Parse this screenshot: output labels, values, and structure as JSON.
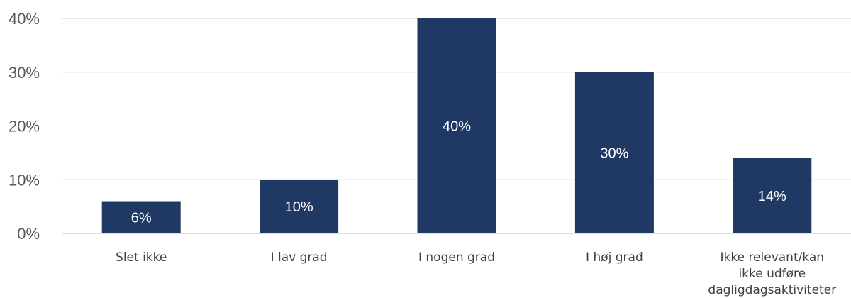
{
  "chart_data": {
    "type": "bar",
    "categories": [
      [
        "Slet ikke"
      ],
      [
        "I lav grad"
      ],
      [
        "I nogen grad"
      ],
      [
        "I høj grad"
      ],
      [
        "Ikke relevant/kan",
        "ikke udføre",
        "dagligdagsaktiviteter"
      ]
    ],
    "values": [
      6,
      10,
      40,
      30,
      14
    ],
    "data_labels": [
      "6%",
      "10%",
      "40%",
      "30%",
      "14%"
    ],
    "y_ticks": [
      {
        "value": 0,
        "label": "0%"
      },
      {
        "value": 10,
        "label": "10%"
      },
      {
        "value": 20,
        "label": "20%"
      },
      {
        "value": 30,
        "label": "30%"
      },
      {
        "value": 40,
        "label": "40%"
      }
    ],
    "ylim": [
      0,
      40
    ],
    "grid": true,
    "bar_color": "#203864",
    "data_label_color": "#ffffff"
  }
}
